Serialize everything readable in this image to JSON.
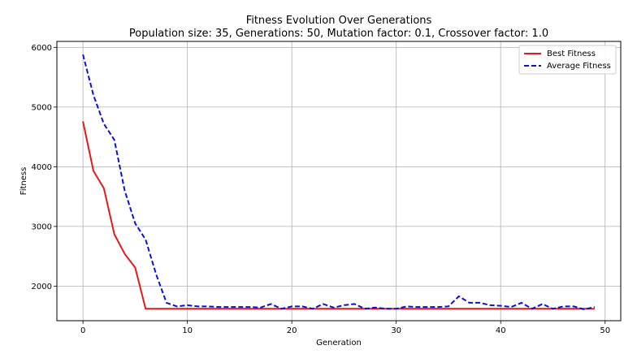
{
  "chart_data": {
    "type": "line",
    "title": "Fitness Evolution Over Generations",
    "subtitle": "Population size: 35, Generations: 50, Mutation factor: 0.1, Crossover factor: 1.0",
    "xlabel": "Generation",
    "ylabel": "Fitness",
    "xlim": [
      -2.5,
      51.5
    ],
    "ylim": [
      1420,
      6100
    ],
    "xticks": [
      0,
      10,
      20,
      30,
      40,
      50
    ],
    "yticks": [
      2000,
      3000,
      4000,
      5000,
      6000
    ],
    "grid": true,
    "legend_position": "top-right",
    "x": [
      0,
      1,
      2,
      3,
      4,
      5,
      6,
      7,
      8,
      9,
      10,
      11,
      12,
      13,
      14,
      15,
      16,
      17,
      18,
      19,
      20,
      21,
      22,
      23,
      24,
      25,
      26,
      27,
      28,
      29,
      30,
      31,
      32,
      33,
      34,
      35,
      36,
      37,
      38,
      39,
      40,
      41,
      42,
      43,
      44,
      45,
      46,
      47,
      48,
      49
    ],
    "series": [
      {
        "name": "Best Fitness",
        "color": "#e41a1a",
        "style": "solid",
        "values": [
          4760,
          3930,
          3640,
          2870,
          2540,
          2310,
          1620,
          1620,
          1620,
          1620,
          1620,
          1620,
          1620,
          1620,
          1620,
          1620,
          1620,
          1620,
          1620,
          1620,
          1620,
          1620,
          1620,
          1620,
          1620,
          1620,
          1620,
          1620,
          1620,
          1620,
          1620,
          1620,
          1620,
          1620,
          1620,
          1620,
          1620,
          1620,
          1620,
          1620,
          1620,
          1620,
          1620,
          1620,
          1620,
          1620,
          1620,
          1620,
          1620,
          1620
        ]
      },
      {
        "name": "Average Fitness",
        "color": "#0a10d8",
        "style": "dashed",
        "values": [
          5880,
          5200,
          4720,
          4450,
          3600,
          3050,
          2780,
          2200,
          1720,
          1660,
          1680,
          1660,
          1660,
          1650,
          1650,
          1650,
          1650,
          1640,
          1700,
          1620,
          1660,
          1660,
          1620,
          1700,
          1640,
          1680,
          1700,
          1620,
          1640,
          1620,
          1620,
          1660,
          1650,
          1650,
          1650,
          1660,
          1830,
          1720,
          1720,
          1680,
          1670,
          1650,
          1720,
          1620,
          1700,
          1620,
          1660,
          1660,
          1610,
          1650
        ]
      }
    ]
  }
}
